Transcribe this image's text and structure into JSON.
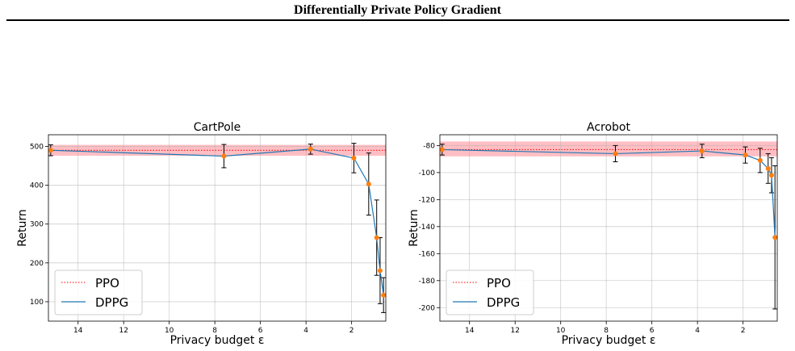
{
  "page": {
    "title": "Differentially Private Policy Gradient"
  },
  "chart_data": [
    {
      "type": "line",
      "title": "CartPole",
      "xlabel": "Privacy budget ε",
      "ylabel": "Return",
      "xlim": [
        15.3,
        0.5
      ],
      "ylim": [
        50,
        530
      ],
      "x_reversed": true,
      "xticks": [
        14,
        12,
        10,
        8,
        6,
        4,
        2
      ],
      "yticks": [
        100,
        200,
        300,
        400,
        500
      ],
      "grid": true,
      "legend_position": "lower-left",
      "reference": {
        "name": "PPO",
        "color": "#ff0000",
        "value": 490,
        "band": [
          476,
          504
        ],
        "band_color": "#ffb3b8"
      },
      "series": [
        {
          "name": "DPPG",
          "color": "#1f77b4",
          "marker_color": "#ff7f0e",
          "x": [
            15.2,
            7.6,
            3.8,
            1.9,
            1.25,
            0.9,
            0.75,
            0.6
          ],
          "y": [
            490,
            475,
            493,
            470,
            403,
            265,
            180,
            117
          ],
          "err": [
            14,
            30,
            13,
            38,
            80,
            97,
            85,
            45
          ]
        }
      ]
    },
    {
      "type": "line",
      "title": "Acrobot",
      "xlabel": "Privacy budget ε",
      "ylabel": "Return",
      "xlim": [
        15.3,
        0.5
      ],
      "ylim": [
        -210,
        -72
      ],
      "x_reversed": true,
      "xticks": [
        14,
        12,
        10,
        8,
        6,
        4,
        2
      ],
      "yticks": [
        -80,
        -100,
        -120,
        -140,
        -160,
        -180,
        -200
      ],
      "grid": true,
      "legend_position": "lower-left",
      "reference": {
        "name": "PPO",
        "color": "#ff0000",
        "value": -83,
        "band": [
          -88,
          -77
        ],
        "band_color": "#ffb3b8"
      },
      "series": [
        {
          "name": "DPPG",
          "color": "#1f77b4",
          "marker_color": "#ff7f0e",
          "x": [
            15.2,
            7.6,
            3.8,
            1.9,
            1.25,
            0.9,
            0.75,
            0.6
          ],
          "y": [
            -83,
            -86,
            -84,
            -87,
            -91,
            -97,
            -102,
            -148
          ],
          "err": [
            4,
            6,
            5,
            6,
            9,
            11,
            13,
            53
          ]
        }
      ]
    }
  ]
}
